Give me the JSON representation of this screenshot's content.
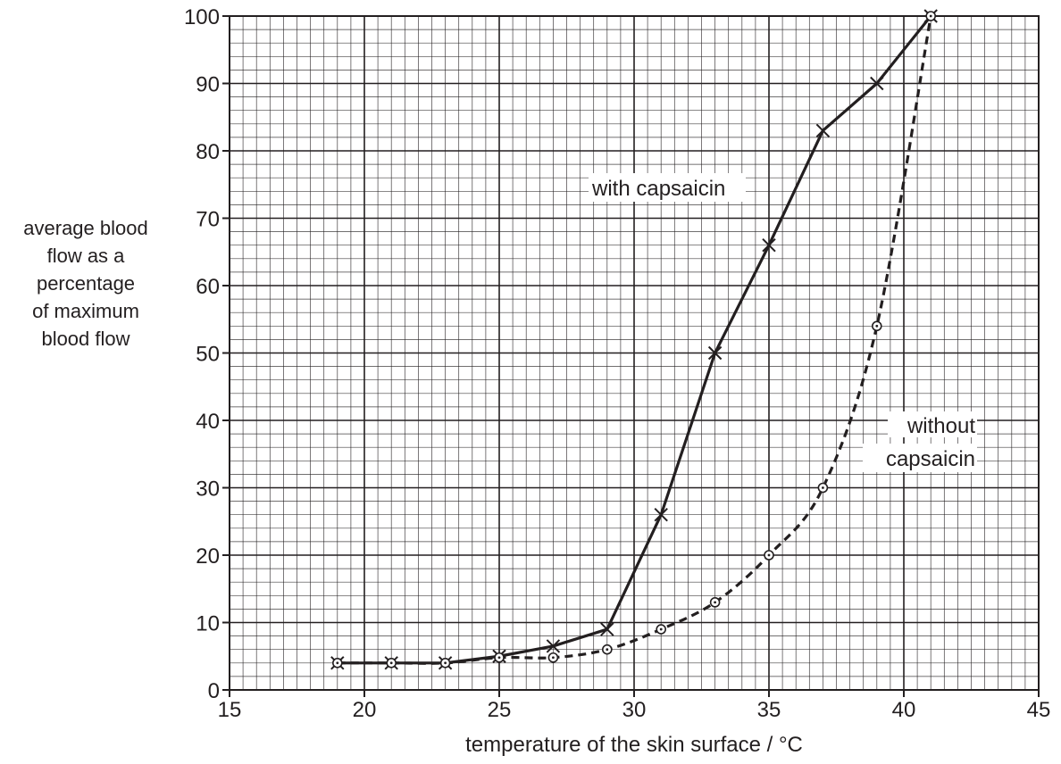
{
  "chart_data": {
    "type": "line",
    "xlabel": "temperature of the skin surface / °C",
    "ylabel_lines": [
      "average blood",
      "flow as a",
      "percentage",
      "of maximum",
      "blood flow"
    ],
    "xlim": [
      15,
      45
    ],
    "ylim": [
      0,
      100
    ],
    "x_ticks": [
      15,
      20,
      25,
      30,
      35,
      40,
      45
    ],
    "y_ticks": [
      0,
      10,
      20,
      30,
      40,
      50,
      60,
      70,
      80,
      90,
      100
    ],
    "grid": true,
    "series": [
      {
        "name": "with capsaicin",
        "marker": "cross",
        "line_style": "solid",
        "x": [
          19,
          21,
          23,
          25,
          27,
          29,
          31,
          33,
          35,
          37,
          39,
          41
        ],
        "values": [
          4,
          4,
          4,
          5,
          6.5,
          9,
          26,
          50,
          66,
          83,
          90,
          100
        ]
      },
      {
        "name": "without capsaicin",
        "name_lines": [
          "without",
          "capsaicin"
        ],
        "marker": "dotted-circle",
        "line_style": "dashed",
        "x": [
          19,
          21,
          23,
          25,
          27,
          29,
          31,
          33,
          35,
          37,
          39,
          41
        ],
        "values": [
          4,
          4,
          4,
          4.8,
          4.8,
          6,
          9,
          13,
          20,
          30,
          54,
          100
        ]
      }
    ]
  }
}
